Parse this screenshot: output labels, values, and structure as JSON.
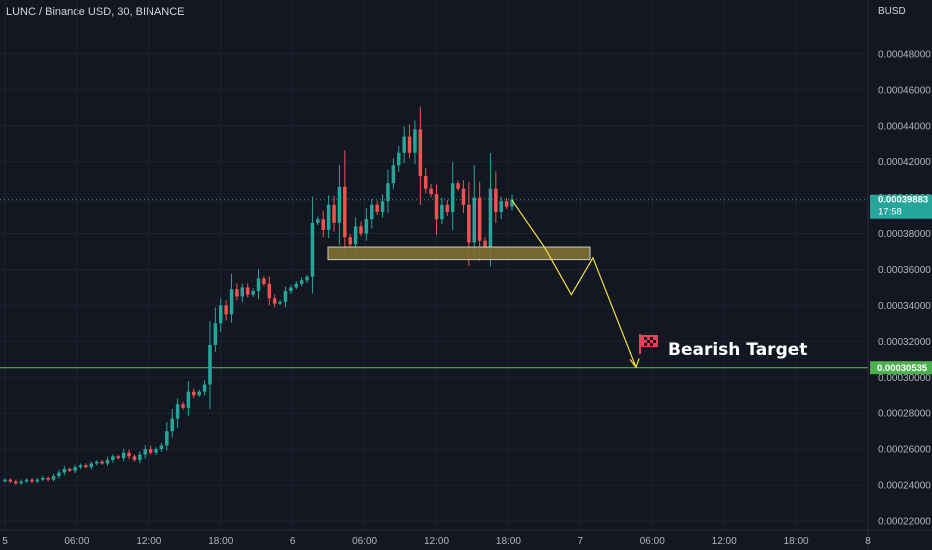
{
  "header": {
    "title": "LUNC / Binance USD, 30, BINANCE",
    "currency": "BUSD"
  },
  "price_badges": {
    "current_price": "0.00039883",
    "countdown": "17:58",
    "target_price": "0.00030535"
  },
  "colors": {
    "background": "#131722",
    "up": "#26a69a",
    "down": "#ef5350",
    "target_line": "#4caf50",
    "projection": "#f5e046",
    "zone_fill": "#807032",
    "zone_border": "#c9c9c9"
  },
  "annotation": {
    "label": "Bearish Target",
    "icon": "checkered-flag-icon"
  },
  "chart_data": {
    "type": "candlestick",
    "title": "LUNC / Binance USD, 30, BINANCE",
    "y_axis": {
      "ticks": [
        "0.00048000",
        "0.00046000",
        "0.00044000",
        "0.00042000",
        "0.00040000",
        "0.00038000",
        "0.00036000",
        "0.00034000",
        "0.00032000",
        "0.00030000",
        "0.00028000",
        "0.00026000",
        "0.00024000",
        "0.00022000"
      ],
      "range": [
        0.000215,
        0.00051
      ]
    },
    "x_axis": {
      "ticks": [
        "5",
        "06:00",
        "12:00",
        "18:00",
        "6",
        "06:00",
        "12:00",
        "18:00",
        "7",
        "06:00",
        "12:00",
        "18:00",
        "8"
      ],
      "index_range": [
        0,
        160
      ]
    },
    "candles_close": [
      0.000243,
      0.000242,
      0.000241,
      0.000242,
      0.000243,
      0.000242,
      0.000243,
      0.000244,
      0.000243,
      0.000245,
      0.000247,
      0.000249,
      0.000248,
      0.00025,
      0.000251,
      0.00025,
      0.000252,
      0.000253,
      0.000252,
      0.000254,
      0.000256,
      0.000255,
      0.000258,
      0.000256,
      0.000254,
      0.000257,
      0.00026,
      0.000258,
      0.00026,
      0.000262,
      0.00027,
      0.000277,
      0.000285,
      0.000283,
      0.000292,
      0.00029,
      0.000292,
      0.000296,
      0.000318,
      0.00033,
      0.00034,
      0.000335,
      0.000349,
      0.000345,
      0.00035,
      0.000346,
      0.000348,
      0.000355,
      0.000352,
      0.000344,
      0.000341,
      0.000342,
      0.000348,
      0.00035,
      0.000352,
      0.000354,
      0.000356,
      0.000386,
      0.000388,
      0.000382,
      0.000396,
      0.000386,
      0.000406,
      0.000378,
      0.000374,
      0.000384,
      0.00038,
      0.000388,
      0.000396,
      0.000392,
      0.000398,
      0.000408,
      0.000418,
      0.000425,
      0.000434,
      0.000425,
      0.000438,
      0.000412,
      0.000405,
      0.000402,
      0.000388,
      0.000396,
      0.000392,
      0.000408,
      0.000405,
      0.000396,
      0.000375,
      0.0004,
      0.000376,
      0.000372,
      0.000405,
      0.000392,
      0.000398,
      0.000395,
      0.000399
    ],
    "support_zone": {
      "from": 0.0003655,
      "to": 0.0003725
    },
    "target_level": 0.00030535,
    "current_price": 0.00039883,
    "projection_path": [
      [
        94,
        0.0003985
      ],
      [
        100,
        0.0003725
      ],
      [
        105,
        0.000346
      ],
      [
        109,
        0.0003665
      ],
      [
        117,
        0.0003055
      ]
    ]
  }
}
